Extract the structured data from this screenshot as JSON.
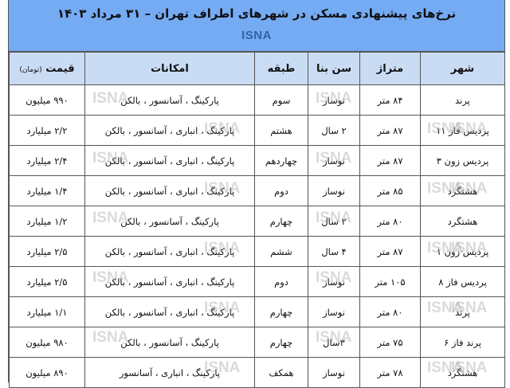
{
  "title": "نرخ‌های پیشنهادی مسکن در شهرهای اطراف تهران – ۳۱ مرداد ۱۴۰۳",
  "brand": "ISNA",
  "watermark": "ISNA",
  "colors": {
    "banner": "#75abf3",
    "header": "#c9dcf4",
    "brand": "#2f63a8"
  },
  "headers": {
    "city": "شهر",
    "area": "متراژ",
    "age": "سن بنا",
    "floor": "طبقه",
    "features": "امکانات",
    "price": "قیمت",
    "price_unit": "(تومان)"
  },
  "rows": [
    {
      "city": "پرند",
      "area": "۸۴ متر",
      "age": "نوساز",
      "floor": "سوم",
      "features": "پارکینگ ، آسانسور ، بالکن",
      "price": "۹۹۰ میلیون"
    },
    {
      "city": "پردیس فاز ۱۱",
      "area": "۸۷ متر",
      "age": "۲ سال",
      "floor": "هشتم",
      "features": "پارکینگ ، انباری ، آسانسور ، بالکن",
      "price": "۲/۲ میلیارد"
    },
    {
      "city": "پردیس زون ۳",
      "area": "۸۷ متر",
      "age": "نوساز",
      "floor": "چهاردهم",
      "features": "پارکینگ ، انباری ، آسانسور ، بالکن",
      "price": "۲/۴ میلیارد"
    },
    {
      "city": "هشتگرد",
      "area": "۸۵ متر",
      "age": "نوساز",
      "floor": "دوم",
      "features": "پارکینگ ، انباری ، آسانسور ، بالکن",
      "price": "۱/۴ میلیارد"
    },
    {
      "city": "هشتگرد",
      "area": "۸۰ متر",
      "age": "۲ سال",
      "floor": "چهارم",
      "features": "پارکینگ ، آسانسور ، بالکن",
      "price": "۱/۲ میلیارد"
    },
    {
      "city": "پردیس زون ۱",
      "area": "۸۷ متر",
      "age": "۴ سال",
      "floor": "ششم",
      "features": "پارکینگ ، انباری ، آسانسور ، بالکن",
      "price": "۲/۵ میلیارد"
    },
    {
      "city": "پردیس فاز ۸",
      "area": "۱۰۵ متر",
      "age": "نوساز",
      "floor": "دوم",
      "features": "پارکینگ ، انباری ، آسانسور ، بالکن",
      "price": "۲/۵ میلیارد"
    },
    {
      "city": "پرند",
      "area": "۸۰ متر",
      "age": "نوساز",
      "floor": "چهارم",
      "features": "پارکینگ ، انباری ، آسانسور ، بالکن",
      "price": "۱/۱ میلیارد"
    },
    {
      "city": "پرند فاز ۶",
      "area": "۷۵ متر",
      "age": "۳سال",
      "floor": "چهارم",
      "features": "پارکینگ ، آسانسور ، بالکن",
      "price": "۹۸۰ میلیون"
    },
    {
      "city": "هشتگرد",
      "area": "۷۸ متر",
      "age": "نوساز",
      "floor": "همکف",
      "features": "پارکینگ ، انباری ، آسانسور",
      "price": "۸۹۰ میلیون"
    }
  ]
}
